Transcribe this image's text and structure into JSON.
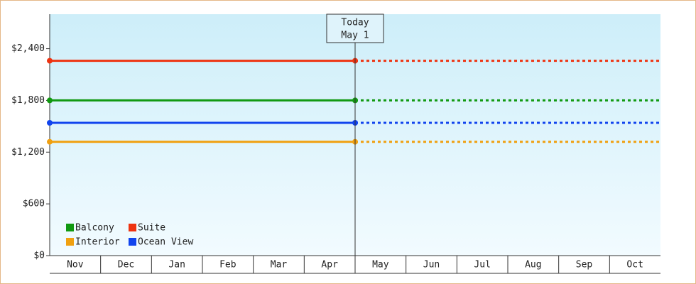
{
  "chart_data": {
    "type": "line",
    "categories": [
      "Nov",
      "Dec",
      "Jan",
      "Feb",
      "Mar",
      "Apr",
      "May",
      "Jun",
      "Jul",
      "Aug",
      "Sep",
      "Oct"
    ],
    "today": {
      "label": "Today",
      "date": "May 1"
    },
    "series": [
      {
        "name": "Balcony",
        "color": "#119911",
        "value": 1800
      },
      {
        "name": "Suite",
        "color": "#ee3311",
        "value": 2260
      },
      {
        "name": "Interior",
        "color": "#f0a010",
        "value": 1320
      },
      {
        "name": "Ocean View",
        "color": "#1144ee",
        "value": 1540
      }
    ],
    "ylim": [
      0,
      2800
    ],
    "yticks": [
      {
        "value": 0,
        "label": "$0"
      },
      {
        "value": 600,
        "label": "$600"
      },
      {
        "value": 1200,
        "label": "$1,200"
      },
      {
        "value": 1800,
        "label": "$1,800"
      },
      {
        "value": 2400,
        "label": "$2,400"
      }
    ]
  }
}
